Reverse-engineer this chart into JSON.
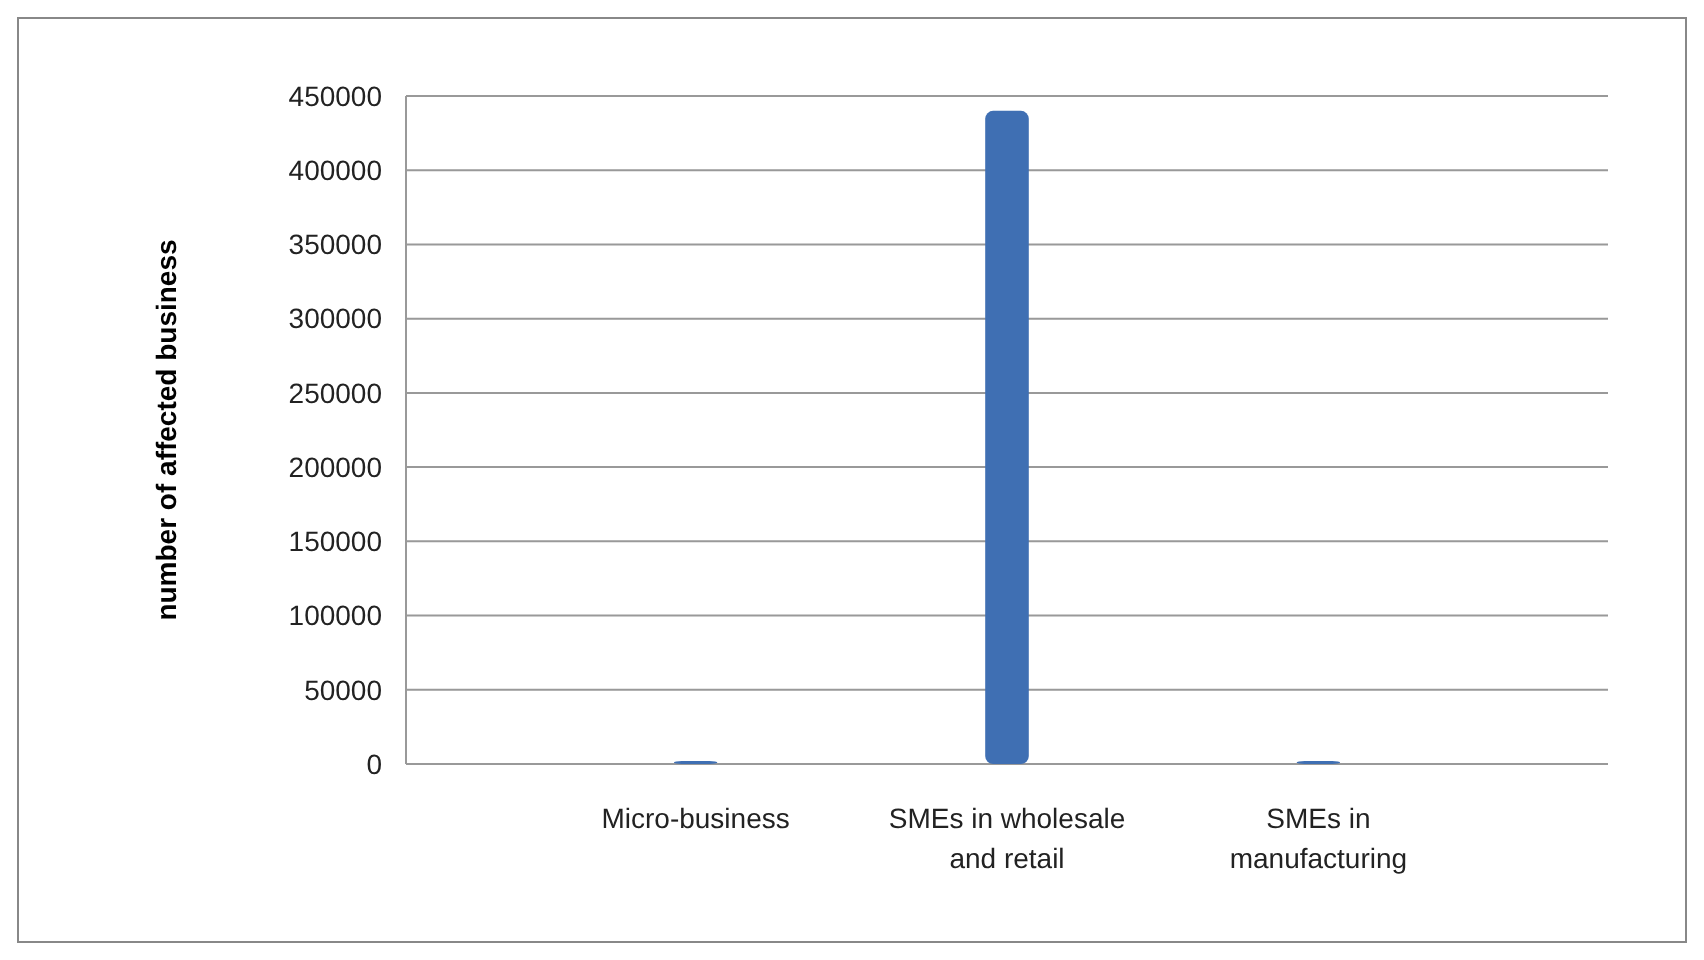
{
  "chart_data": {
    "type": "bar",
    "ylabel": "number of affected business",
    "categories": [
      "Micro-business",
      "SMEs in wholesale and retail",
      "SMEs in manufacturing"
    ],
    "values": [
      2000,
      440000,
      2000
    ],
    "color": "#3f6fb3",
    "ylim": [
      0,
      450000
    ],
    "yticks": [
      0,
      50000,
      100000,
      150000,
      200000,
      250000,
      300000,
      350000,
      400000,
      450000
    ],
    "grid": "y"
  }
}
